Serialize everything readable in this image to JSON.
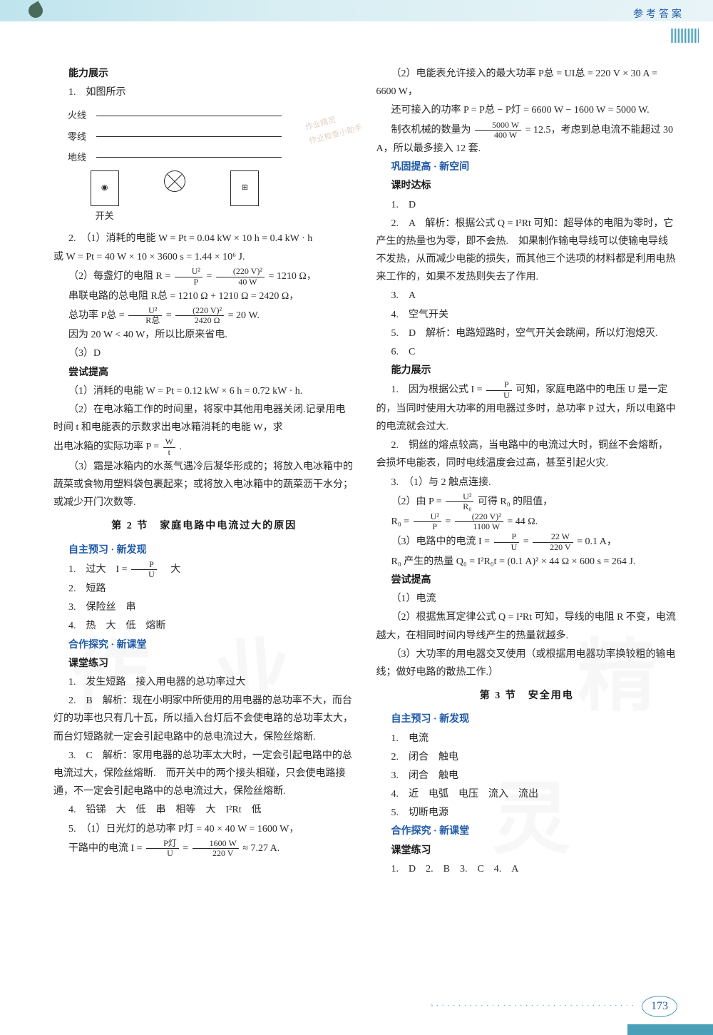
{
  "header": {
    "right_text": "参考答案",
    "page_number": "173"
  },
  "left_col": {
    "h0": "能力展示",
    "p1": "1.　如图所示",
    "circuit": {
      "line1": "火线",
      "line2": "零线",
      "line3": "地线",
      "switch": "开关"
    },
    "p2": "2.　（1）消耗的电能 W = Pt = 0.04 kW × 10 h = 0.4 kW · h",
    "p2b": "或 W = Pt = 40 W × 10 × 3600 s = 1.44 × 10⁶ J.",
    "p3_pre": "（2）每盏灯的电阻 R = ",
    "p3_f1n": "U²",
    "p3_f1d": "P",
    "p3_mid": " = ",
    "p3_f2n": "(220 V)²",
    "p3_f2d": "40 W",
    "p3_post": " = 1210 Ω，",
    "p4": "串联电路的总电阻 R总 = 1210 Ω + 1210 Ω = 2420 Ω，",
    "p5_pre": "总功率 P总 = ",
    "p5_f1n": "U²",
    "p5_f1d": "R总",
    "p5_mid": " = ",
    "p5_f2n": "(220 V)²",
    "p5_f2d": "2420 Ω",
    "p5_post": " = 20 W.",
    "p6": "因为 20 W < 40 W，所以比原来省电.",
    "p7": "（3）D",
    "h1": "尝试提高",
    "p8": "（1）消耗的电能 W = Pt = 0.12 kW × 6 h = 0.72 kW · h.",
    "p9": "（2）在电冰箱工作的时间里，将家中其他用电器关闭.记录用电时间 t 和电能表的示数求出电冰箱消耗的电能 W，求",
    "p9b_pre": "出电冰箱的实际功率 P = ",
    "p9b_fn": "W",
    "p9b_fd": "t",
    "p9b_post": ".",
    "p10": "（3）霜是冰箱内的水蒸气遇冷后凝华形成的；将放入电冰箱中的蔬菜或食物用塑料袋包裹起来；或将放入电冰箱中的蔬菜沥干水分；或减少开门次数等.",
    "sec2": "第 2 节　家庭电路中电流过大的原因",
    "h2": "自主预习 · 新发现",
    "p11_pre": "1.　过大　I = ",
    "p11_fn": "P",
    "p11_fd": "U",
    "p11_post": "　大",
    "p12": "2.　短路",
    "p13": "3.　保险丝　串",
    "p14": "4.　热　大　低　熔断",
    "h3": "合作探究 · 新课堂",
    "h4": "课堂练习",
    "p15": "1.　发生短路　接入用电器的总功率过大",
    "p16": "2.　B　解析：现在小明家中所使用的用电器的总功率不大，而台灯的功率也只有几十瓦，所以插入台灯后不会使电路的总功率太大，而台灯短路就一定会引起电路中的总电流过大，保险丝熔断.",
    "p17": "3.　C　解析：家用电器的总功率太大时，一定会引起电路中的总电流过大，保险丝熔断.　而开关中的两个接头相碰，只会使电路接通，不一定会引起电路中的总电流过大，保险丝熔断.",
    "p18": "4.　铅锑　大　低　串　相等　大　I²Rt　低",
    "p19": "5.　（1）日光灯的总功率 P灯 = 40 × 40 W = 1600 W，",
    "p20_pre": "干路中的电流 I = ",
    "p20_f1n": "P灯",
    "p20_f1d": "U",
    "p20_mid": " = ",
    "p20_f2n": "1600 W",
    "p20_f2d": "220 V",
    "p20_post": " ≈ 7.27 A."
  },
  "right_col": {
    "p1": "（2）电能表允许接入的最大功率 P总 = UI总 = 220 V × 30 A = 6600 W，",
    "p2": "还可接入的功率 P = P总 − P灯 = 6600 W − 1600 W = 5000 W.",
    "p3_pre": "制衣机械的数量为 ",
    "p3_fn": "5000 W",
    "p3_fd": "400 W",
    "p3_post": " = 12.5，考虑到总电流不能超过 30 A，所以最多接入 12 套.",
    "h0": "巩固提高 · 新空间",
    "h1": "课时达标",
    "p4": "1.　D",
    "p5": "2.　A　解析：根据公式 Q = I²Rt 可知：超导体的电阻为零时，它产生的热量也为零，即不会热.　如果制作输电导线可以使输电导线不发热，从而减少电能的损失，而其他三个选项的材料都是利用电热来工作的，如果不发热则失去了作用.",
    "p6": "3.　A",
    "p7": "4.　空气开关",
    "p8": "5.　D　解析：电路短路时，空气开关会跳闸，所以灯泡熄灭.",
    "p9": "6.　C",
    "h2": "能力展示",
    "p10_pre": "1.　因为根据公式 I = ",
    "p10_fn": "P",
    "p10_fd": "U",
    "p10_post": " 可知，家庭电路中的电压 U 是一定的，当同时使用大功率的用电器过多时，总功率 P 过大，所以电路中的电流就会过大.",
    "p11": "2.　铜丝的熔点较高，当电路中的电流过大时，铜丝不会熔断，会损坏电能表，同时电线温度会过高，甚至引起火灾.",
    "p12": "3.　（1）与 2 触点连接.",
    "p13_pre": "（2）由 P = ",
    "p13_fn": "U²",
    "p13_fd": "R₀",
    "p13_post": " 可得 R₀ 的阻值，",
    "p14_pre": "R₀ = ",
    "p14_f1n": "U²",
    "p14_f1d": "P",
    "p14_mid": " = ",
    "p14_f2n": "(220 V)²",
    "p14_f2d": "1100 W",
    "p14_post": " = 44 Ω.",
    "p15_pre": "（3）电路中的电流 I = ",
    "p15_f1n": "P",
    "p15_f1d": "U",
    "p15_mid": " = ",
    "p15_f2n": "22 W",
    "p15_f2d": "220 V",
    "p15_post": " = 0.1 A，",
    "p16": "R₀ 产生的热量 Q₀ = I²R₀t = (0.1 A)² × 44 Ω × 600 s = 264 J.",
    "h3": "尝试提高",
    "p17": "（1）电流",
    "p18": "（2）根据焦耳定律公式 Q = I²Rt 可知，导线的电阻 R 不变，电流越大，在相同时间内导线产生的热量就越多.",
    "p19": "（3）大功率的用电器交叉使用（或根据用电器功率换较粗的输电线；做好电路的散热工作.）",
    "sec3": "第 3 节　安全用电",
    "h4": "自主预习 · 新发现",
    "p20": "1.　电流",
    "p21": "2.　闭合　触电",
    "p22": "3.　闭合　触电",
    "p23": "4.　近　电弧　电压　流入　流出",
    "p24": "5.　切断电源",
    "h5": "合作探究 · 新课堂",
    "h6": "课堂练习",
    "p25": "1.　D　2.　B　3.　C　4.　A"
  }
}
